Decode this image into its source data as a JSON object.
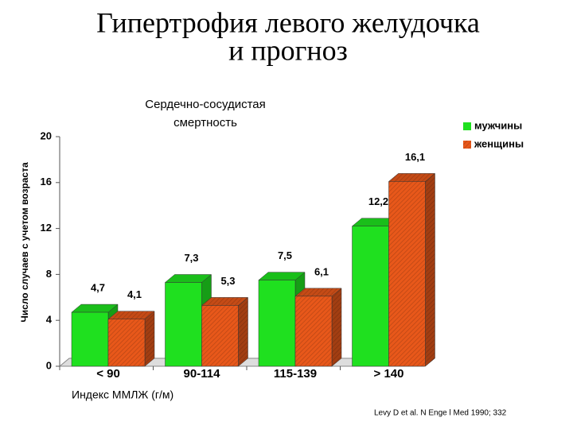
{
  "chart_data": {
    "type": "bar3d",
    "title": [
      "Гипертрофия левого желудочка",
      "и прогноз"
    ],
    "subtitle": [
      "Сердечно-сосудистая",
      "смертность"
    ],
    "y_label": "Число случаев с учетом возраста",
    "x_label": "Индекс ММЛЖ (г/м)",
    "source": "Levy D et al. N Enge l Med 1990; 332",
    "categories": [
      "< 90",
      "90-114",
      "115-139",
      "> 140"
    ],
    "series": [
      {
        "name": "мужчины",
        "color": "#1fe01f",
        "values": [
          4.7,
          7.3,
          7.5,
          12.2
        ],
        "value_labels": [
          "4,7",
          "7,3",
          "7,5",
          "12,2"
        ]
      },
      {
        "name": "женщины",
        "color": "#e8581a",
        "hatch": true,
        "values": [
          4.1,
          5.3,
          6.1,
          16.1
        ],
        "value_labels": [
          "4,1",
          "5,3",
          "6,1",
          "16,1"
        ]
      }
    ],
    "ylim": [
      0,
      20
    ],
    "yticks": [
      0,
      4,
      8,
      12,
      16,
      20
    ]
  }
}
